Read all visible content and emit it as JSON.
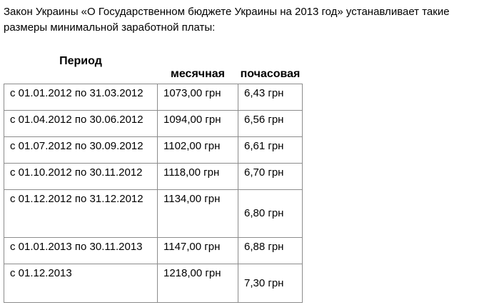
{
  "intro": "Закон Украины «О Государственном бюджете Украины на 2013 год» устанавливает такие размеры минимальной заработной платы:",
  "table": {
    "headers": {
      "period": "Период",
      "monthly": "месячная",
      "hourly": "почасовая"
    },
    "rows": [
      {
        "period": "с 01.01.2012 по 31.03.2012",
        "monthly": "1073,00 грн",
        "hourly": "6,43 грн"
      },
      {
        "period": "с 01.04.2012 по 30.06.2012",
        "monthly": "1094,00 грн",
        "hourly": "6,56 грн"
      },
      {
        "period": "с 01.07.2012 по 30.09.2012",
        "monthly": "1102,00 грн",
        "hourly": "6,61 грн"
      },
      {
        "period": "с 01.10.2012 по 30.11.2012",
        "monthly": "1118,00 грн",
        "hourly": "6,70 грн"
      },
      {
        "period": "с 01.12.2012 по 31.12.2012",
        "monthly": "1134,00 грн",
        "hourly": "6,80 грн"
      },
      {
        "period": "с 01.01.2013 по 30.11.2013",
        "monthly": "1147,00 грн",
        "hourly": "6,88 грн"
      },
      {
        "period": "с 01.12.2013",
        "monthly": "1218,00 грн",
        "hourly": "7,30 грн"
      }
    ]
  },
  "colors": {
    "table_border": "#8c8c8c",
    "text": "#000000",
    "background": "#ffffff"
  }
}
